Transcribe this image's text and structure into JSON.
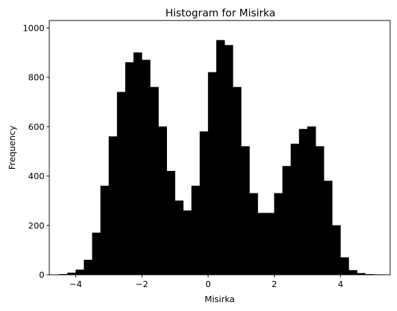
{
  "chart_data": {
    "type": "bar",
    "title": "Histogram for Misirka",
    "xlabel": "Misirka",
    "ylabel": "Frequency",
    "xlim": [
      -4.8,
      5.5
    ],
    "ylim": [
      0,
      1030
    ],
    "xticks": [
      -4,
      -2,
      0,
      2,
      4
    ],
    "yticks": [
      0,
      200,
      400,
      600,
      800,
      1000
    ],
    "grid": false,
    "bar_color": "#000000",
    "bin_width": 0.25,
    "bins": [
      -4.5,
      -4.25,
      -4.0,
      -3.75,
      -3.5,
      -3.25,
      -3.0,
      -2.75,
      -2.5,
      -2.25,
      -2.0,
      -1.75,
      -1.5,
      -1.25,
      -1.0,
      -0.75,
      -0.5,
      -0.25,
      0.0,
      0.25,
      0.5,
      0.75,
      1.0,
      1.25,
      1.5,
      1.75,
      2.0,
      2.25,
      2.5,
      2.75,
      3.0,
      3.25,
      3.5,
      3.75,
      4.0,
      4.25,
      4.5,
      4.75,
      5.0
    ],
    "values": [
      2,
      8,
      20,
      60,
      170,
      360,
      560,
      740,
      860,
      900,
      870,
      760,
      600,
      420,
      300,
      260,
      360,
      580,
      820,
      950,
      930,
      760,
      520,
      330,
      250,
      250,
      330,
      440,
      530,
      590,
      600,
      520,
      380,
      200,
      70,
      18,
      6,
      2,
      1
    ]
  }
}
